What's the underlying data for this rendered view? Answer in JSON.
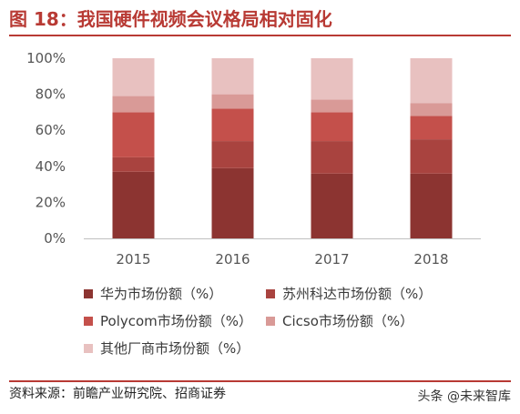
{
  "title": "图 18：我国硬件视频会议格局相对固化",
  "source": "资料来源：前瞻产业研究院、招商证券",
  "watermark": "头条 @未来智库",
  "chart_data": {
    "type": "bar",
    "stacked": true,
    "categories": [
      "2015",
      "2016",
      "2017",
      "2018"
    ],
    "ylim": [
      0,
      100
    ],
    "yticks": [
      "0%",
      "20%",
      "40%",
      "60%",
      "80%",
      "100%"
    ],
    "grid": false,
    "legend_position": "bottom",
    "series": [
      {
        "name": "华为市场份额（%）",
        "color": "#8c3431",
        "values": [
          37,
          39,
          36,
          36
        ]
      },
      {
        "name": "苏州科达市场份额（%）",
        "color": "#a9433f",
        "values": [
          8,
          15,
          18,
          19
        ]
      },
      {
        "name": "Polycom市场份额（%）",
        "color": "#c4504b",
        "values": [
          25,
          18,
          16,
          13
        ]
      },
      {
        "name": "Cicso市场份额（%）",
        "color": "#d99a97",
        "values": [
          9,
          8,
          7,
          7
        ]
      },
      {
        "name": "其他厂商市场份额（%）",
        "color": "#e8c1c0",
        "values": [
          21,
          20,
          23,
          25
        ]
      }
    ]
  }
}
